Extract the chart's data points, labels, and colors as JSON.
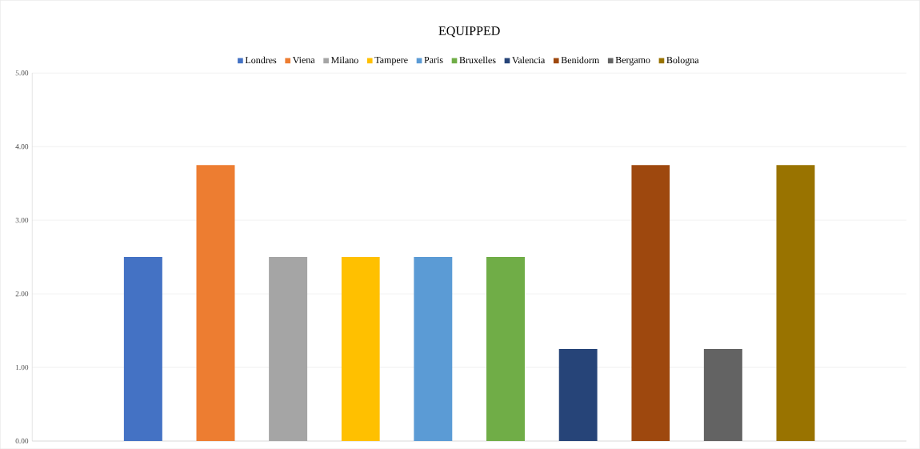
{
  "chart_data": {
    "type": "bar",
    "title": "EQUIPPED",
    "categories": [
      null
    ],
    "series": [
      {
        "name": "Londres",
        "color": "#4472c4",
        "values": [
          2.5
        ]
      },
      {
        "name": "Viena",
        "color": "#ed7d31",
        "values": [
          3.75
        ]
      },
      {
        "name": "Milano",
        "color": "#a5a5a5",
        "values": [
          2.5
        ]
      },
      {
        "name": "Tampere",
        "color": "#ffc000",
        "values": [
          2.5
        ]
      },
      {
        "name": "Paris",
        "color": "#5b9bd5",
        "values": [
          2.5
        ]
      },
      {
        "name": "Bruxelles",
        "color": "#70ad47",
        "values": [
          2.5
        ]
      },
      {
        "name": "Valencia",
        "color": "#264478",
        "values": [
          1.25
        ]
      },
      {
        "name": "Benidorm",
        "color": "#9e480e",
        "values": [
          3.75
        ]
      },
      {
        "name": "Bergamo",
        "color": "#636363",
        "values": [
          1.25
        ]
      },
      {
        "name": "Bologna",
        "color": "#997300",
        "values": [
          3.75
        ]
      }
    ],
    "ylim": [
      0,
      5
    ],
    "yticks": [
      {
        "value": 0,
        "label": "0.00"
      },
      {
        "value": 1,
        "label": "1.00"
      },
      {
        "value": 2,
        "label": "2.00"
      },
      {
        "value": 3,
        "label": "3.00"
      },
      {
        "value": 4,
        "label": "4.00"
      },
      {
        "value": 5,
        "label": "5.00"
      }
    ],
    "grid": "y",
    "legend": "top"
  }
}
